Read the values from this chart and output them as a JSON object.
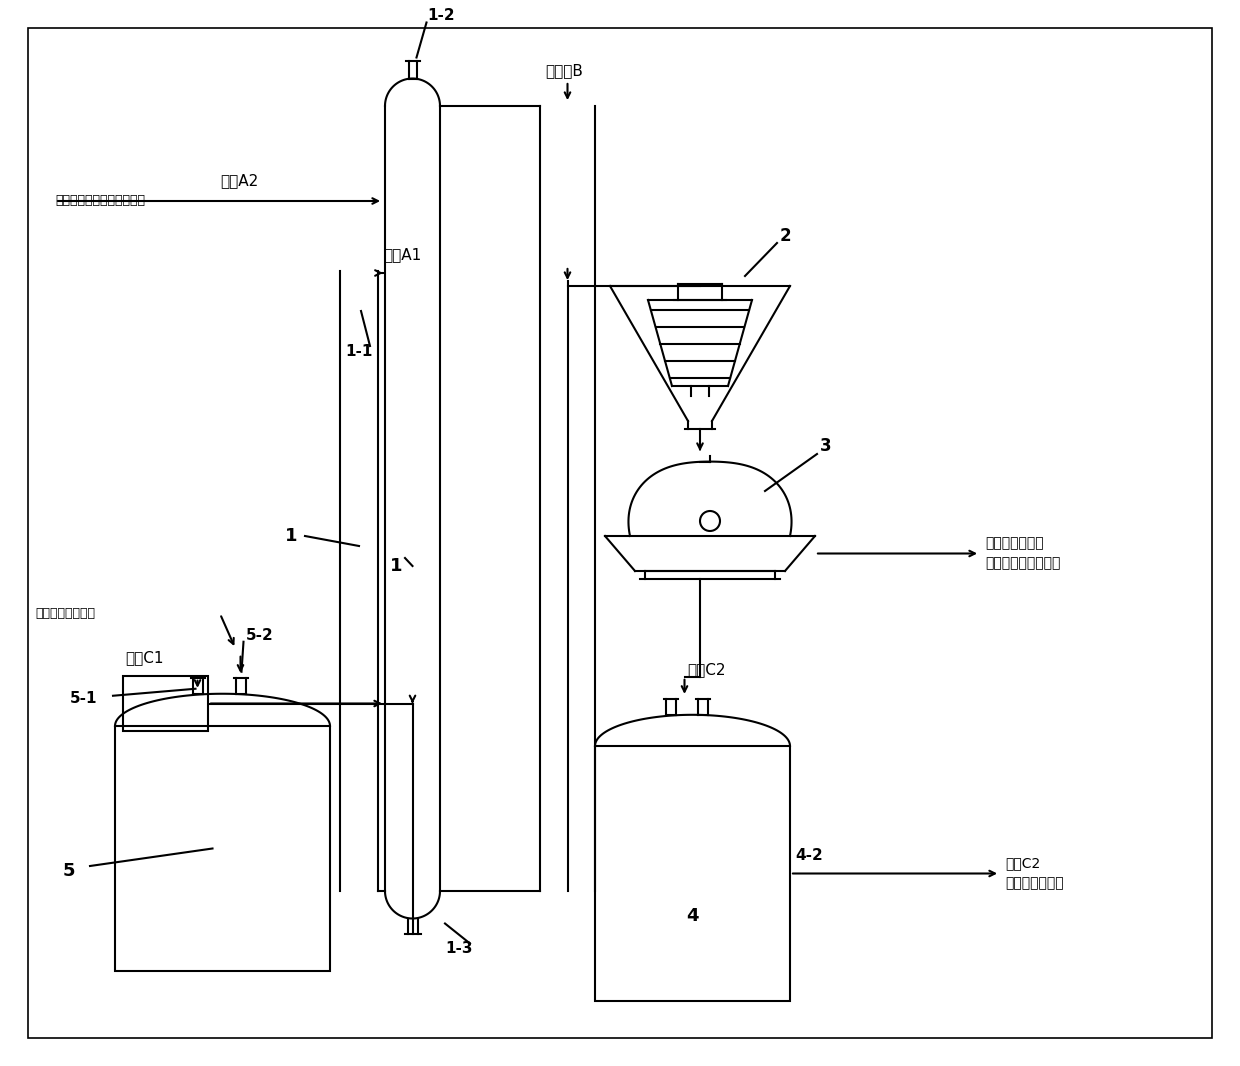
{
  "bg_color": "#ffffff",
  "line_color": "#000000",
  "labels": {
    "saturated_brine": "饱和或接近饱和的钓盐溶液",
    "solution_A2": "溶液A2",
    "solution_A1": "溶液A1",
    "extract_B": "取出液B",
    "solution_C1": "溶液C1",
    "solution_C2": "溶液C2",
    "raw_material": "原料固体碳酸氢鑃",
    "solid_product_1": "固体碳酸氢钓去",
    "solid_product_2": "小苏打后续生产工序",
    "solution_C2_1": "溶液C2",
    "solution_C2_2": "去鑣盐生产工序"
  },
  "numbers": {
    "n1": "1",
    "n1_1": "1-1",
    "n1_2": "1-2",
    "n1_3": "1-3",
    "n2": "2",
    "n3": "3",
    "n4": "4",
    "n4_2": "4-2",
    "n5": "5",
    "n5_1": "5-1",
    "n5_2": "5-2"
  }
}
